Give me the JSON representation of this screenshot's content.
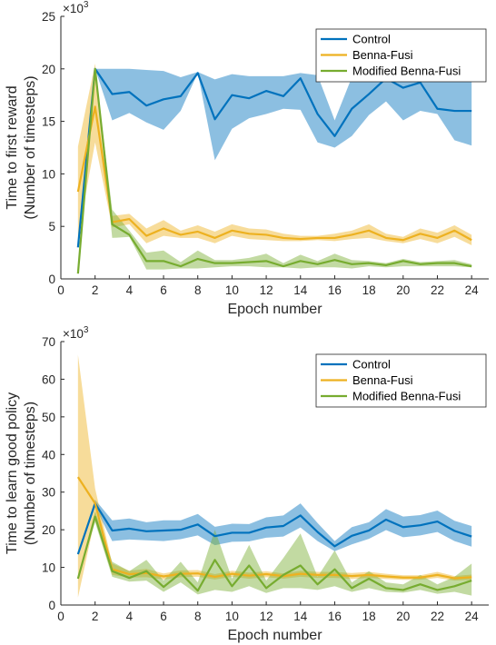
{
  "chart_data": [
    {
      "type": "line",
      "xlabel": "Epoch number",
      "ylabel": [
        "Time to first reward",
        "(Number of timesteps)"
      ],
      "exponent_label": "×10",
      "exponent": "3",
      "xlim": [
        0,
        25
      ],
      "ylim": [
        0,
        25
      ],
      "xticks": [
        0,
        2,
        4,
        6,
        8,
        10,
        12,
        14,
        16,
        18,
        20,
        22,
        24
      ],
      "yticks": [
        0,
        5,
        10,
        15,
        20,
        25
      ],
      "legend_position": "top-right",
      "x": [
        1,
        2,
        3,
        4,
        5,
        6,
        7,
        8,
        9,
        10,
        11,
        12,
        13,
        14,
        15,
        16,
        17,
        18,
        19,
        20,
        21,
        22,
        23,
        24
      ],
      "series": [
        {
          "name": "Control",
          "color": "#0072BD",
          "values": [
            3.0,
            20.0,
            17.6,
            17.8,
            16.5,
            17.1,
            17.4,
            19.6,
            15.2,
            17.5,
            17.2,
            17.9,
            17.4,
            19.1,
            15.7,
            13.6,
            16.2,
            17.6,
            19.1,
            18.2,
            18.7,
            16.2,
            16.0,
            16.0
          ],
          "lower": [
            3.0,
            20.0,
            15.1,
            15.8,
            14.9,
            14.2,
            16.0,
            19.6,
            11.3,
            14.3,
            15.3,
            15.7,
            16.2,
            16.1,
            13.0,
            12.5,
            13.6,
            15.6,
            16.9,
            15.1,
            16.0,
            15.7,
            13.2,
            12.7
          ],
          "upper": [
            3.0,
            20.0,
            20.0,
            20.0,
            19.9,
            19.8,
            19.2,
            19.7,
            19.0,
            19.5,
            19.3,
            19.3,
            19.3,
            19.6,
            19.4,
            15.1,
            19.2,
            19.3,
            19.3,
            19.2,
            19.2,
            19.2,
            19.1,
            19.0
          ]
        },
        {
          "name": "Benna-Fusi",
          "color": "#EDB120",
          "values": [
            8.3,
            16.4,
            5.4,
            5.7,
            4.1,
            4.8,
            4.2,
            4.5,
            3.9,
            4.6,
            4.3,
            4.2,
            3.9,
            3.8,
            3.9,
            3.9,
            4.2,
            4.6,
            3.9,
            3.7,
            4.3,
            3.9,
            4.6,
            3.7
          ],
          "lower": [
            4.0,
            13.0,
            4.9,
            5.2,
            3.4,
            4.1,
            3.9,
            3.9,
            3.4,
            4.1,
            3.8,
            3.7,
            3.6,
            3.6,
            3.7,
            3.6,
            3.8,
            3.9,
            3.6,
            3.4,
            3.8,
            3.4,
            4.0,
            3.2
          ],
          "upper": [
            12.6,
            20.5,
            6.0,
            6.2,
            4.8,
            5.6,
            4.6,
            5.1,
            4.5,
            5.2,
            4.8,
            4.7,
            4.3,
            4.1,
            4.1,
            4.3,
            4.6,
            5.2,
            4.3,
            4.0,
            4.8,
            4.4,
            5.1,
            4.2
          ]
        },
        {
          "name": "Modified Benna-Fusi",
          "color": "#77AC30",
          "values": [
            0.5,
            20.0,
            5.2,
            4.2,
            1.7,
            1.7,
            1.2,
            1.9,
            1.5,
            1.5,
            1.6,
            1.7,
            1.2,
            1.7,
            1.4,
            1.8,
            1.4,
            1.5,
            1.3,
            1.7,
            1.4,
            1.5,
            1.5,
            1.2
          ],
          "lower": [
            0.5,
            20.0,
            3.9,
            4.0,
            0.9,
            0.9,
            1.0,
            1.0,
            1.1,
            1.2,
            1.2,
            1.1,
            1.1,
            1.0,
            1.1,
            1.1,
            1.0,
            1.2,
            1.1,
            1.2,
            1.2,
            1.2,
            1.2,
            1.1
          ],
          "upper": [
            0.5,
            20.0,
            6.6,
            4.6,
            2.5,
            2.7,
            1.6,
            2.7,
            1.8,
            1.8,
            2.0,
            2.4,
            1.5,
            2.3,
            1.7,
            2.4,
            1.8,
            1.7,
            1.5,
            1.9,
            1.6,
            1.7,
            1.8,
            1.4
          ]
        }
      ]
    },
    {
      "type": "line",
      "xlabel": "Epoch number",
      "ylabel": [
        "Time to learn good policy",
        "(Number of timesteps)"
      ],
      "exponent_label": "×10",
      "exponent": "3",
      "xlim": [
        0,
        25
      ],
      "ylim": [
        0,
        70
      ],
      "xticks": [
        0,
        2,
        4,
        6,
        8,
        10,
        12,
        14,
        16,
        18,
        20,
        22,
        24
      ],
      "yticks": [
        0,
        10,
        20,
        30,
        40,
        50,
        60,
        70
      ],
      "legend_position": "top-right",
      "x": [
        1,
        2,
        3,
        4,
        5,
        6,
        7,
        8,
        9,
        10,
        11,
        12,
        13,
        14,
        15,
        16,
        17,
        18,
        19,
        20,
        21,
        22,
        23,
        24
      ],
      "series": [
        {
          "name": "Control",
          "color": "#0072BD",
          "values": [
            13.5,
            27.0,
            19.8,
            20.3,
            19.6,
            19.8,
            20.0,
            21.4,
            18.3,
            19.2,
            19.2,
            20.6,
            21.0,
            23.8,
            19.4,
            15.6,
            18.4,
            19.8,
            22.7,
            20.7,
            21.2,
            22.2,
            19.7,
            18.2
          ],
          "lower": [
            13.5,
            26.0,
            17.0,
            17.4,
            17.2,
            17.0,
            17.5,
            18.5,
            15.9,
            16.8,
            16.9,
            17.9,
            18.2,
            20.6,
            17.0,
            14.3,
            16.1,
            17.6,
            19.9,
            18.0,
            18.5,
            19.4,
            17.0,
            15.5
          ],
          "upper": [
            13.5,
            28.0,
            22.5,
            23.0,
            22.0,
            22.5,
            22.5,
            24.2,
            20.8,
            21.6,
            21.5,
            23.3,
            23.8,
            27.0,
            21.8,
            17.0,
            20.7,
            22.0,
            25.5,
            23.5,
            23.9,
            25.1,
            22.4,
            21.0
          ]
        },
        {
          "name": "Benna-Fusi",
          "color": "#EDB120",
          "values": [
            34.0,
            27.0,
            9.5,
            8.2,
            8.5,
            7.6,
            8.3,
            8.4,
            7.5,
            8.3,
            7.8,
            8.2,
            7.7,
            8.3,
            8.0,
            8.0,
            7.7,
            8.0,
            7.6,
            7.3,
            7.3,
            8.0,
            7.1,
            7.4
          ],
          "lower": [
            2.0,
            23.0,
            8.0,
            7.3,
            7.4,
            6.8,
            7.4,
            7.5,
            6.8,
            7.5,
            7.0,
            7.4,
            7.0,
            7.5,
            7.2,
            7.2,
            6.9,
            7.2,
            6.9,
            6.7,
            6.7,
            7.2,
            6.5,
            6.7
          ],
          "upper": [
            66.5,
            31.0,
            11.0,
            9.1,
            9.6,
            8.4,
            9.2,
            9.3,
            8.2,
            9.1,
            8.6,
            9.0,
            8.4,
            9.1,
            8.8,
            8.8,
            8.5,
            8.8,
            8.3,
            7.9,
            7.9,
            8.8,
            7.7,
            8.1
          ]
        },
        {
          "name": "Modified Benna-Fusi",
          "color": "#77AC30",
          "values": [
            7.0,
            23.5,
            9.0,
            7.2,
            9.0,
            4.8,
            8.5,
            3.8,
            12.0,
            5.0,
            10.5,
            4.5,
            8.0,
            10.5,
            5.5,
            9.5,
            4.5,
            7.0,
            4.5,
            4.0,
            5.5,
            4.0,
            5.0,
            6.5
          ],
          "lower": [
            7.0,
            22.0,
            7.5,
            6.2,
            6.5,
            3.5,
            6.0,
            2.8,
            4.0,
            3.5,
            5.0,
            3.2,
            4.5,
            4.5,
            4.0,
            5.0,
            3.5,
            4.5,
            3.5,
            3.3,
            4.0,
            3.0,
            3.5,
            2.5
          ],
          "upper": [
            7.0,
            25.0,
            11.5,
            9.0,
            12.0,
            6.5,
            11.5,
            6.0,
            20.0,
            7.0,
            16.0,
            6.5,
            12.5,
            19.0,
            7.5,
            14.5,
            6.0,
            9.0,
            6.0,
            5.5,
            8.0,
            5.5,
            7.5,
            11.0
          ]
        }
      ]
    }
  ]
}
